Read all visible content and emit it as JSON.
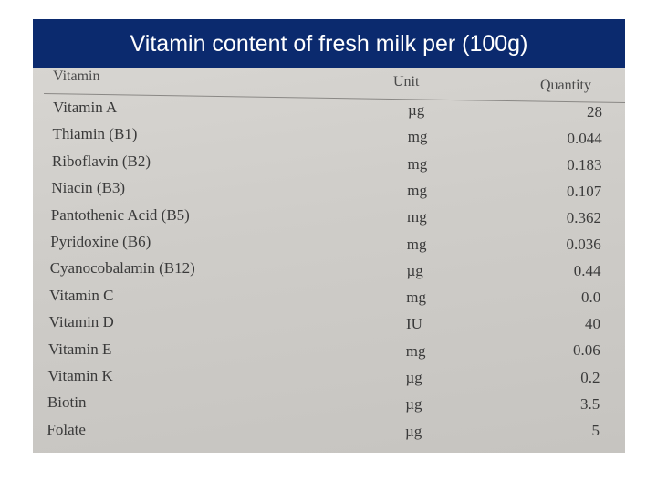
{
  "title": "Vitamin content of fresh milk per (100g)",
  "table": {
    "headers": {
      "name": "Vitamin",
      "unit": "Unit",
      "quantity": "Quantity"
    },
    "rows": [
      {
        "name": "Vitamin A",
        "unit": "µg",
        "quantity": "28"
      },
      {
        "name": "Thiamin (B1)",
        "unit": "mg",
        "quantity": "0.044"
      },
      {
        "name": "Riboflavin (B2)",
        "unit": "mg",
        "quantity": "0.183"
      },
      {
        "name": "Niacin (B3)",
        "unit": "mg",
        "quantity": "0.107"
      },
      {
        "name": "Pantothenic Acid (B5)",
        "unit": "mg",
        "quantity": "0.362"
      },
      {
        "name": "Pyridoxine (B6)",
        "unit": "mg",
        "quantity": "0.036"
      },
      {
        "name": "Cyanocobalamin (B12)",
        "unit": "µg",
        "quantity": "0.44"
      },
      {
        "name": "Vitamin C",
        "unit": "mg",
        "quantity": "0.0"
      },
      {
        "name": "Vitamin D",
        "unit": "IU",
        "quantity": "40"
      },
      {
        "name": "Vitamin E",
        "unit": "mg",
        "quantity": "0.06"
      },
      {
        "name": "Vitamin K",
        "unit": "µg",
        "quantity": "0.2"
      },
      {
        "name": "Biotin",
        "unit": "µg",
        "quantity": "3.5"
      },
      {
        "name": "Folate",
        "unit": "µg",
        "quantity": "5"
      }
    ]
  }
}
